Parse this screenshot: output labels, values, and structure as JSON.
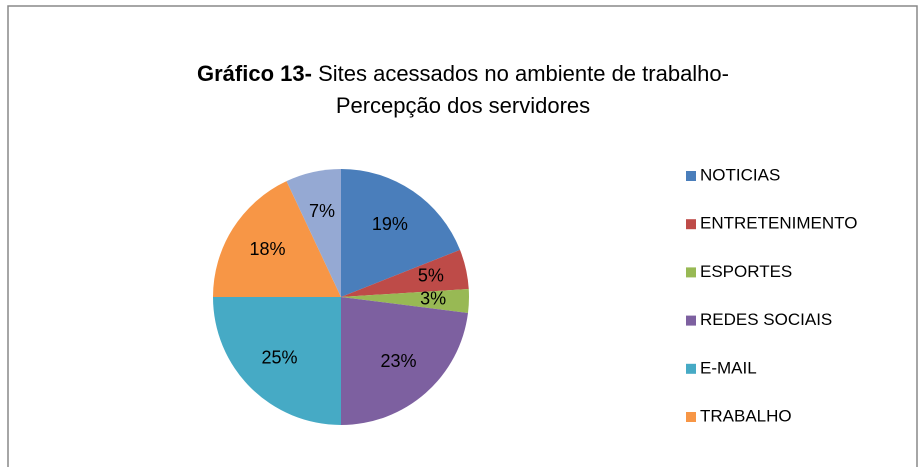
{
  "chart_data": {
    "type": "pie",
    "title_prefix": "Gráfico 13-",
    "title": [
      "Sites acessados no ambiente de trabalho-",
      "Percepção dos servidores"
    ],
    "categories": [
      "NOTICIAS",
      "ENTRETENIMENTO",
      "ESPORTES",
      "REDES SOCIAIS",
      "E-MAIL",
      "TRABALHO",
      null
    ],
    "values": [
      19,
      5,
      3,
      23,
      25,
      18,
      7
    ],
    "value_labels": [
      "19%",
      "5%",
      "3%",
      "23%",
      "25%",
      "18%",
      "7%"
    ],
    "colors": [
      "#4a7ebb",
      "#be4b48",
      "#98b954",
      "#7d60a0",
      "#46aac5",
      "#f79646",
      "#95a9d3"
    ],
    "legend": "right"
  }
}
